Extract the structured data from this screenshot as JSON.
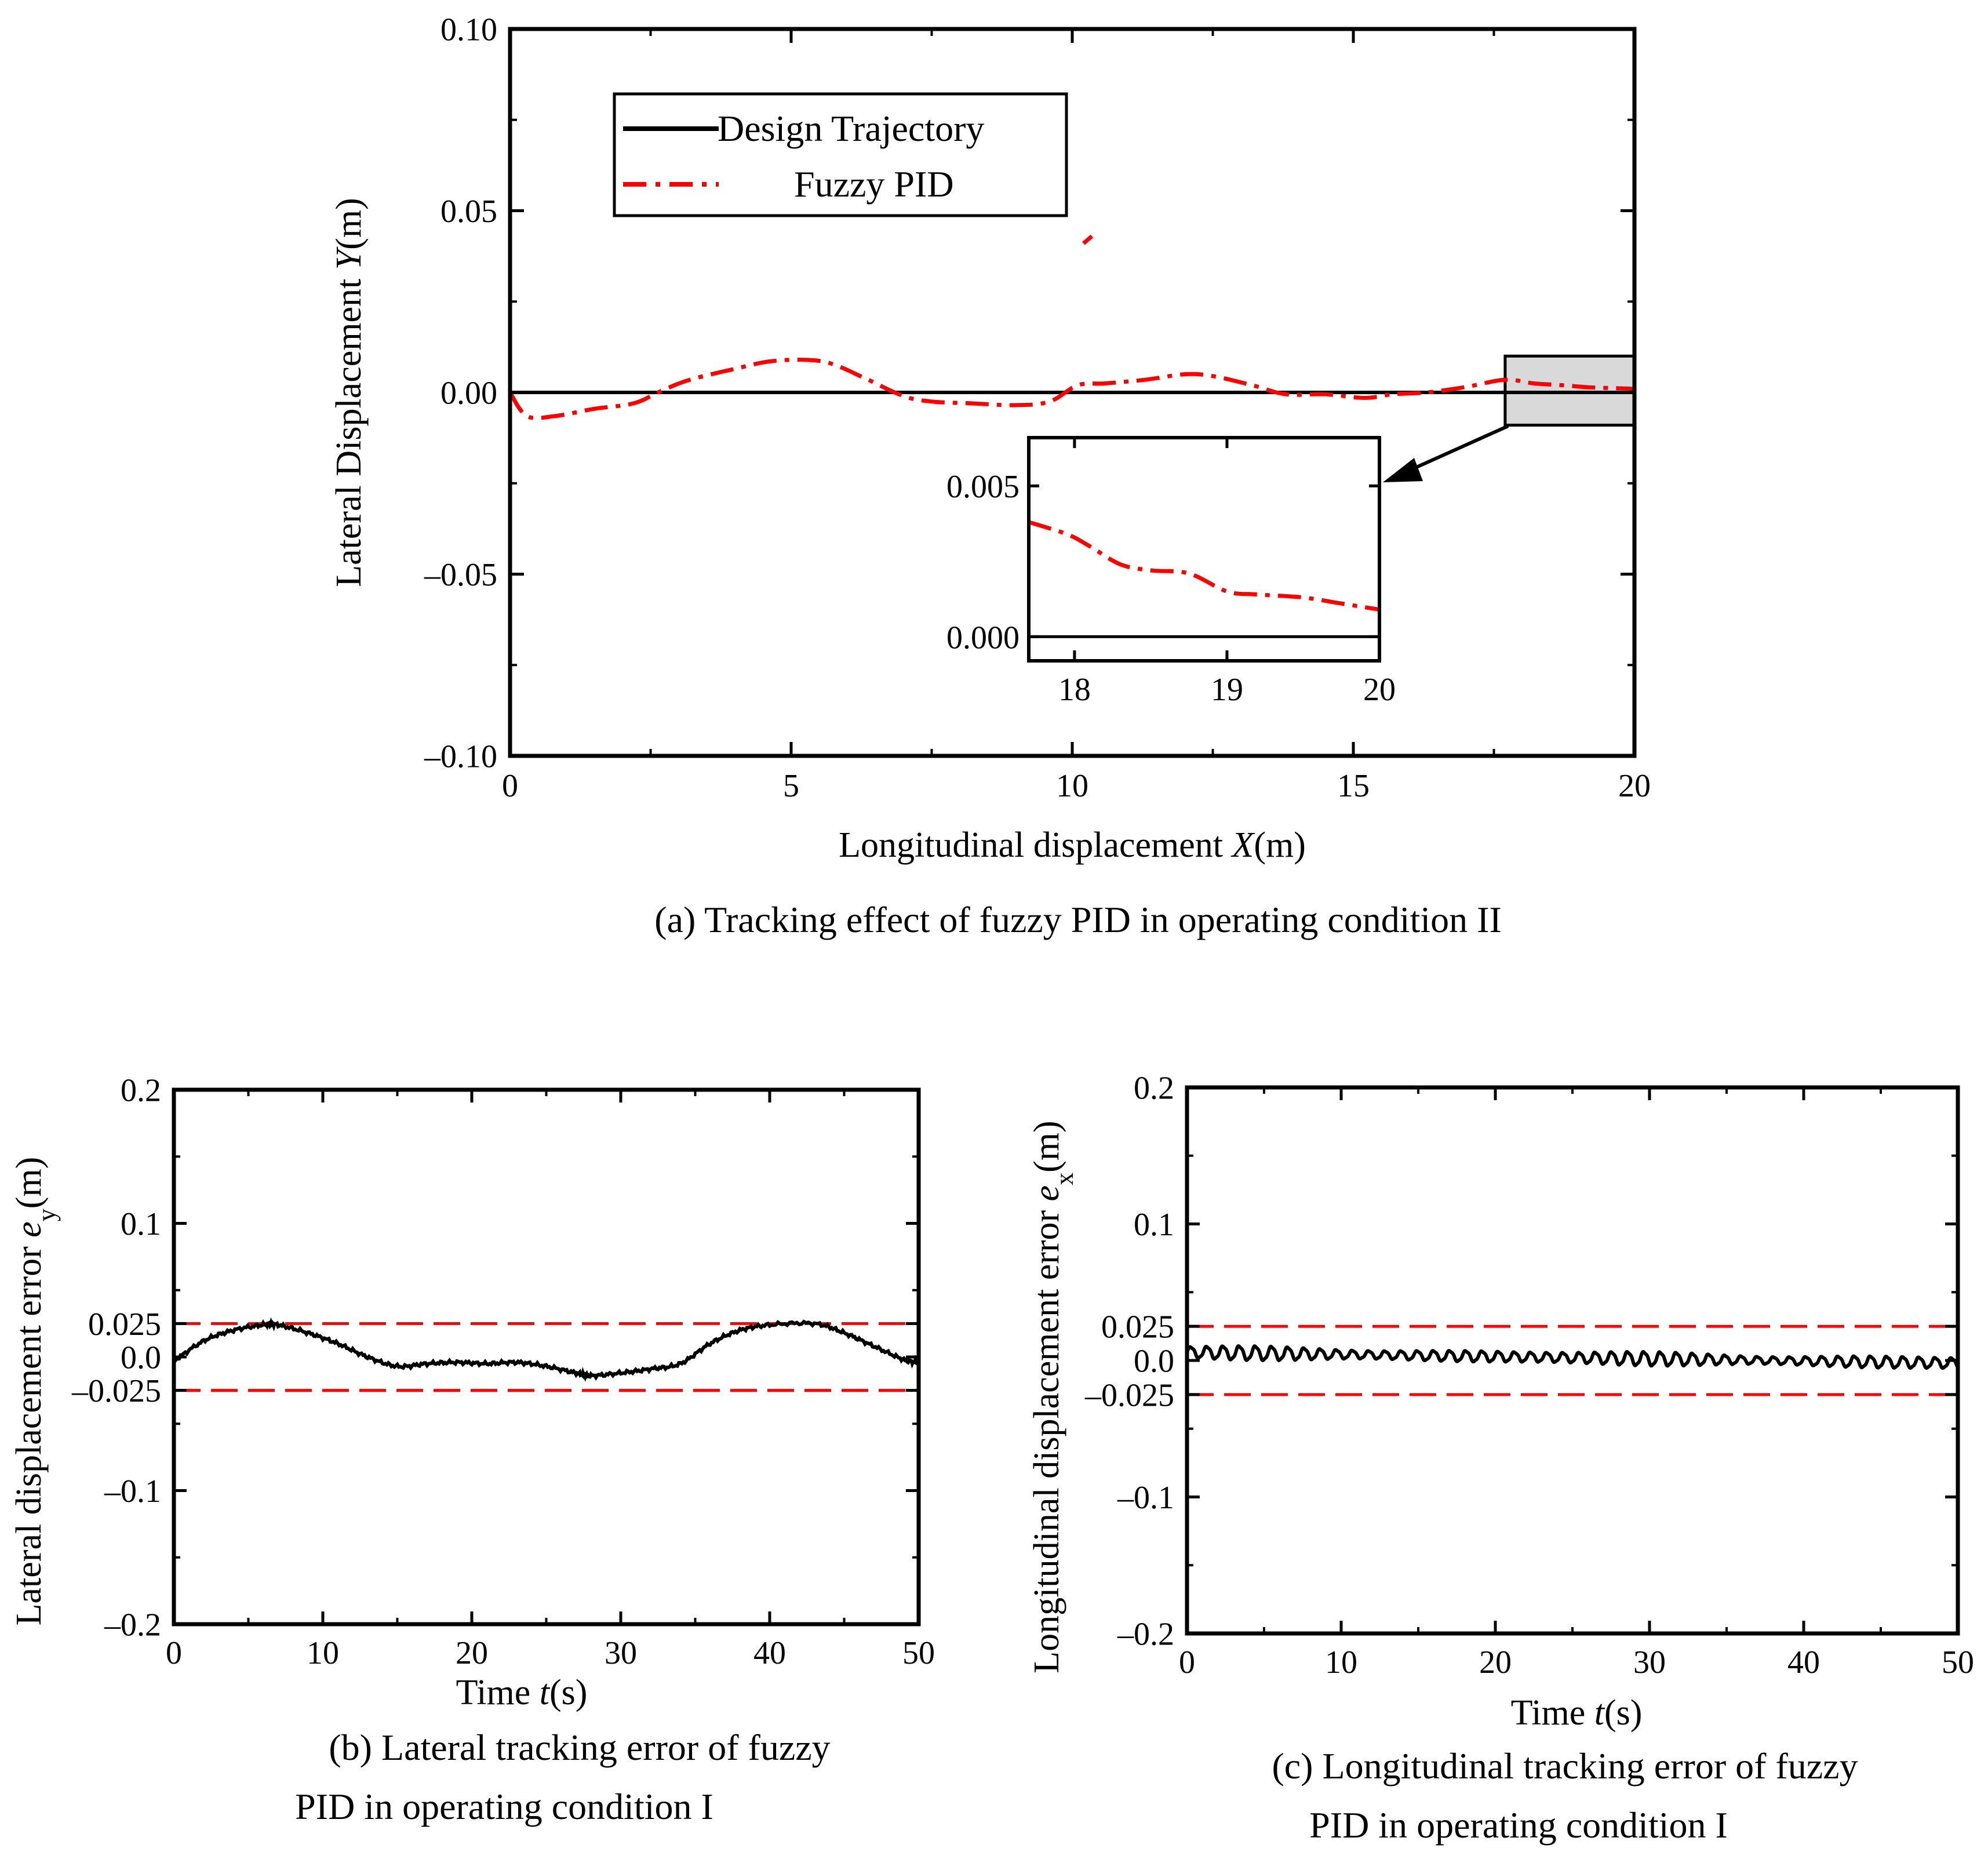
{
  "chart_data": [
    {
      "id": "a",
      "type": "line",
      "caption": "(a) Tracking effect of fuzzy PID in operating condition II",
      "xlabel_prefix": "Longitudinal displacement ",
      "xlabel_var": "X",
      "xlabel_suffix": "(m)",
      "ylabel_prefix": "Lateral Displacement ",
      "ylabel_var": "Y",
      "ylabel_suffix": "(m)",
      "xlim": [
        0,
        20
      ],
      "ylim": [
        -0.1,
        0.1
      ],
      "xticks": [
        0,
        5,
        10,
        15,
        20
      ],
      "xtick_labels": [
        "0",
        "5",
        "10",
        "15",
        "20"
      ],
      "yticks": [
        -0.1,
        -0.05,
        0.0,
        0.05,
        0.1
      ],
      "ytick_labels": [
        "–0.10",
        "–0.05",
        "0.00",
        "0.05",
        "0.10"
      ],
      "legend": [
        "Design Trajectory",
        "Fuzzy PID"
      ],
      "series": [
        {
          "name": "Design Trajectory",
          "color": "#000000",
          "style": "solid",
          "x": [
            0,
            20
          ],
          "y": [
            0,
            0
          ]
        },
        {
          "name": "Fuzzy PID",
          "color": "#ff0000",
          "style": "dashdot",
          "x": [
            0,
            0.3,
            0.8,
            1.5,
            2.2,
            2.7,
            3.2,
            4.0,
            4.6,
            5.2,
            5.7,
            6.3,
            7.0,
            7.5,
            8.2,
            9.0,
            9.6,
            10.1,
            10.6,
            11.3,
            12.0,
            12.5,
            13.2,
            13.8,
            14.5,
            15.2,
            15.7,
            16.3,
            17.0,
            17.7,
            18.2,
            18.7,
            19.2,
            19.6,
            20.0
          ],
          "y": [
            0.0,
            -0.0065,
            -0.0065,
            -0.0045,
            -0.003,
            0.0005,
            0.0035,
            0.0065,
            0.0085,
            0.009,
            0.008,
            0.004,
            -0.001,
            -0.0025,
            -0.003,
            -0.0035,
            -0.0025,
            0.002,
            0.0025,
            0.0035,
            0.005,
            0.0045,
            0.002,
            -0.0005,
            -0.0005,
            -0.0015,
            -0.0005,
            0.0,
            0.0015,
            0.0035,
            0.0025,
            0.002,
            0.0014,
            0.0012,
            0.001
          ]
        },
        {
          "name": "stray",
          "color": "#ff0000",
          "style": "solid",
          "x": [
            10.2,
            10.35
          ],
          "y": [
            0.041,
            0.043
          ]
        }
      ],
      "zoom_box": {
        "xlim": [
          17.7,
          20
        ],
        "ylim": [
          -0.009,
          0.01
        ]
      },
      "inset": {
        "xlim": [
          17.7,
          20
        ],
        "ylim": [
          -0.0008,
          0.0066
        ],
        "xticks": [
          18,
          19,
          20
        ],
        "xtick_labels": [
          "18",
          "19",
          "20"
        ],
        "yticks": [
          0.0,
          0.005
        ],
        "ytick_labels": [
          "0.000",
          "0.005"
        ],
        "series_x": [
          17.7,
          17.95,
          18.1,
          18.3,
          18.5,
          18.75,
          19.0,
          19.2,
          19.5,
          19.75,
          20.0
        ],
        "series_y": [
          0.0038,
          0.0034,
          0.003,
          0.0024,
          0.0022,
          0.0021,
          0.0015,
          0.0014,
          0.0013,
          0.0011,
          0.0009
        ]
      }
    },
    {
      "id": "b",
      "type": "line",
      "caption_line1": "(b) Lateral tracking error of fuzzy",
      "caption_line2": "PID in operating condition I",
      "xlabel_prefix": "Time ",
      "xlabel_var": "t",
      "xlabel_suffix": "(s)",
      "ylabel_prefix": "Lateral displacement error ",
      "ylabel_var": "e",
      "ylabel_sub": "y",
      "ylabel_suffix": "(m)",
      "xlim": [
        0,
        50
      ],
      "ylim": [
        -0.2,
        0.2
      ],
      "xticks": [
        0,
        10,
        20,
        30,
        40,
        50
      ],
      "xtick_labels": [
        "0",
        "10",
        "20",
        "30",
        "40",
        "50"
      ],
      "yticks": [
        -0.2,
        -0.1,
        -0.025,
        0.0,
        0.025,
        0.1,
        0.2
      ],
      "ytick_labels": [
        "–0.2",
        "–0.1",
        "–0.025",
        "0.0",
        "0.025",
        "0.1",
        "0.2"
      ],
      "threshold_lines": [
        0.025,
        -0.025
      ],
      "series": [
        {
          "name": "error",
          "color": "#000000",
          "x": [
            0,
            2,
            4,
            6,
            7,
            9,
            11,
            13,
            15,
            17,
            19,
            21,
            23,
            25,
            27,
            28,
            30,
            32,
            34,
            36,
            38,
            40,
            43,
            45,
            47,
            49,
            50
          ],
          "y": [
            -0.003,
            0.012,
            0.02,
            0.024,
            0.024,
            0.018,
            0.01,
            0.0,
            -0.007,
            -0.005,
            -0.004,
            -0.005,
            -0.004,
            -0.007,
            -0.012,
            -0.014,
            -0.012,
            -0.009,
            -0.005,
            0.01,
            0.02,
            0.024,
            0.025,
            0.018,
            0.008,
            -0.002,
            -0.004
          ],
          "noise": 0.0015
        }
      ]
    },
    {
      "id": "c",
      "type": "line",
      "caption_line1": "(c) Longitudinal tracking error of fuzzy",
      "caption_line2": "PID in operating condition I",
      "xlabel_prefix": "Time  ",
      "xlabel_var": "t",
      "xlabel_suffix": "(s)",
      "ylabel_prefix": "Longitudinal displacement error ",
      "ylabel_var": "e",
      "ylabel_sub": "x",
      "ylabel_suffix": "(m)",
      "xlim": [
        0,
        50
      ],
      "ylim": [
        -0.2,
        0.2
      ],
      "xticks": [
        0,
        10,
        20,
        30,
        40,
        50
      ],
      "xtick_labels": [
        "0",
        "10",
        "20",
        "30",
        "40",
        "50"
      ],
      "yticks": [
        -0.2,
        -0.1,
        -0.025,
        0.0,
        0.025,
        0.1,
        0.2
      ],
      "ytick_labels": [
        "–0.2",
        "–0.1",
        "–0.025",
        "0.0",
        "0.025",
        "0.1",
        "0.2"
      ],
      "threshold_lines": [
        0.025,
        -0.025
      ],
      "series": [
        {
          "name": "error",
          "color": "#000000",
          "oscillation": {
            "period": 1.05,
            "amplitude": 0.006,
            "offset_start": 0.006,
            "offset_end": -0.002
          }
        }
      ]
    }
  ]
}
